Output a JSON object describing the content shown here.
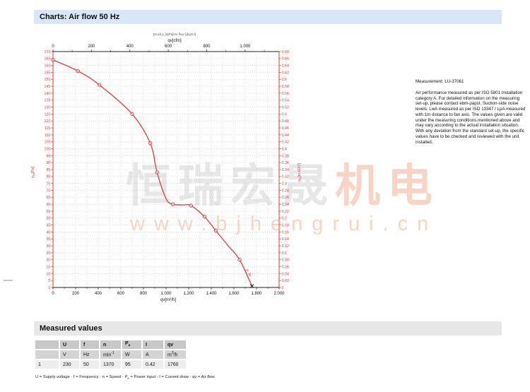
{
  "sections": {
    "charts_title": "Charts: Air flow 50 Hz",
    "measured_title": "Measured values"
  },
  "measurement": {
    "title": "Measurement: LU-37061",
    "body": "Air performance measured as per ISO 5801 Installation category A. For detailed information on the measuring set-up, please contact ebm-papst. Suction-side noise levels: LwA measured as per ISO 13347 / LpA measured with 1m distance to fan axis. The values given are valid under the measuring conditions mentioned above and may vary according to the actual installation situation. With any deviation from the standard set-up, the specific values have to be checked and reviewed with the unit installed."
  },
  "watermark": {
    "cjk_left": "恒瑞宏晟",
    "cjk_right": "机电",
    "url": "www.bjhengrui.cn"
  },
  "chart_data": {
    "type": "line",
    "mini_title": "Druck p_fa[Pa]/Air flow L[kg/m³]",
    "x_top": {
      "label": "qv[cfm]",
      "min": 0,
      "max": 1177,
      "minor_max": 1100,
      "ticks": [
        0,
        200,
        400,
        600,
        800,
        1000
      ],
      "tick_labels": [
        "0",
        "200",
        "400",
        "600",
        "800",
        "1.000"
      ]
    },
    "x_bottom": {
      "label_base": "qv[m",
      "label_sup": "3",
      "label_rest": "/h]",
      "min": 0,
      "max": 2000,
      "grid_step": 100,
      "ticks": [
        0,
        200,
        400,
        600,
        800,
        1000,
        1200,
        1400,
        1600,
        1800,
        2000
      ],
      "tick_labels": [
        "0",
        "200",
        "400",
        "600",
        "800",
        "1.000",
        "1.200",
        "1.400",
        "1.600",
        "1.800",
        "2.000"
      ]
    },
    "y_left": {
      "base": "p",
      "sub": "fa",
      "unit": "[Pa]",
      "min": 0,
      "max": 170,
      "step": 5
    },
    "y_right": {
      "base": "p",
      "sub": "fa",
      "unit": "[in H2O]",
      "min": 0,
      "max": 0.68,
      "step": 0.02
    },
    "series": [
      {
        "name": "p_fa",
        "color": "#e23a36",
        "points": [
          [
            0,
            164
          ],
          [
            220,
            156
          ],
          [
            410,
            146
          ],
          [
            700,
            125
          ],
          [
            860,
            104
          ],
          [
            920,
            83
          ],
          [
            1000,
            64
          ],
          [
            1060,
            60
          ],
          [
            1150,
            59.5
          ],
          [
            1220,
            59
          ],
          [
            1340,
            51
          ],
          [
            1440,
            41
          ],
          [
            1550,
            30
          ],
          [
            1650,
            20
          ],
          [
            1760,
            1
          ]
        ],
        "marker_x": [
          0,
          220,
          410,
          700,
          860,
          920,
          1060,
          1220,
          1340,
          1440,
          1650
        ]
      }
    ],
    "operating_point": {
      "x": 1760,
      "y": 1,
      "label": "1"
    },
    "curve_end_label": "p_fa"
  },
  "table": {
    "h1": "U",
    "h2": "f",
    "h3": "n",
    "h4_base": "P",
    "h4_sub": "e",
    "h5": "I",
    "h6": "qv",
    "u1": "V",
    "u2": "Hz",
    "u3_base": "min",
    "u3_sup": "-1",
    "u4": "W",
    "u5": "A",
    "u6_base": "m",
    "u6_sup": "3",
    "u6_rest": "/h",
    "row": [
      "1",
      "230",
      "50",
      "1370",
      "95",
      "0.42",
      "1760"
    ],
    "legend_p1": "U = Supply voltage · f = Frequency · n = Speed · P",
    "legend_sub": "e",
    "legend_p2": " = Power input · I = Current draw · qv = Air flow"
  }
}
